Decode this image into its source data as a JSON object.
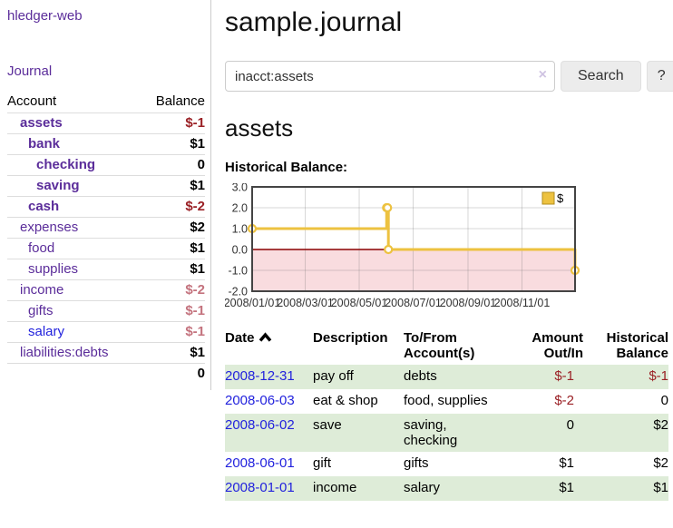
{
  "app": {
    "brand": "hledger-web"
  },
  "nav": {
    "journal": "Journal"
  },
  "sidebar": {
    "header": {
      "account": "Account",
      "balance": "Balance"
    },
    "accounts": [
      {
        "name": "assets",
        "depth": 1,
        "bold": true,
        "link_tone": "purple",
        "balance": "$-1",
        "balance_tone": "negdark"
      },
      {
        "name": "bank",
        "depth": 2,
        "bold": true,
        "link_tone": "purple",
        "balance": "$1",
        "balance_tone": "normal"
      },
      {
        "name": "checking",
        "depth": 3,
        "bold": true,
        "link_tone": "purple",
        "balance": "0",
        "balance_tone": "normal"
      },
      {
        "name": "saving",
        "depth": 3,
        "bold": true,
        "link_tone": "purple",
        "balance": "$1",
        "balance_tone": "normal"
      },
      {
        "name": "cash",
        "depth": 2,
        "bold": true,
        "link_tone": "purple",
        "balance": "$-2",
        "balance_tone": "negdark"
      },
      {
        "name": "expenses",
        "depth": 1,
        "bold": false,
        "link_tone": "purple",
        "balance": "$2",
        "balance_tone": "normal"
      },
      {
        "name": "food",
        "depth": 2,
        "bold": false,
        "link_tone": "purple",
        "balance": "$1",
        "balance_tone": "normal"
      },
      {
        "name": "supplies",
        "depth": 2,
        "bold": false,
        "link_tone": "purple",
        "balance": "$1",
        "balance_tone": "normal"
      },
      {
        "name": "income",
        "depth": 1,
        "bold": false,
        "link_tone": "purple",
        "balance": "$-2",
        "balance_tone": "negsoft"
      },
      {
        "name": "gifts",
        "depth": 2,
        "bold": false,
        "link_tone": "purple",
        "balance": "$-1",
        "balance_tone": "negsoft"
      },
      {
        "name": "salary",
        "depth": 2,
        "bold": false,
        "link_tone": "blue",
        "balance": "$-1",
        "balance_tone": "negsoft"
      },
      {
        "name": "liabilities:debts",
        "depth": 1,
        "bold": false,
        "link_tone": "purple",
        "balance": "$1",
        "balance_tone": "normal"
      }
    ],
    "total": "0"
  },
  "header": {
    "title": "sample.journal"
  },
  "search": {
    "value": "inacct:assets",
    "clear_label": "×",
    "submit_label": "Search",
    "help_label": "?"
  },
  "account_page": {
    "title": "assets",
    "chart_heading": "Historical Balance:"
  },
  "chart_data": {
    "type": "line",
    "step": true,
    "title": "Historical Balance",
    "series": [
      {
        "name": "$",
        "color": "#edc240",
        "points": [
          [
            "2008-01-01",
            1
          ],
          [
            "2008-06-01",
            2
          ],
          [
            "2008-06-02",
            2
          ],
          [
            "2008-06-03",
            0
          ],
          [
            "2008-12-31",
            -1
          ]
        ]
      }
    ],
    "x_range": [
      "2008-01-01",
      "2008-12-31"
    ],
    "ylim": [
      -2,
      3
    ],
    "y_tick_values": [
      3,
      2,
      1,
      0,
      -1,
      -2
    ],
    "y_tick_labels": [
      "3.0",
      "2.0",
      "1.0",
      "0.0",
      "-1.0",
      "-2.0"
    ],
    "x_tick_values": [
      "2008-01-01",
      "2008-03-01",
      "2008-05-01",
      "2008-07-01",
      "2008-09-01",
      "2008-11-01"
    ],
    "x_tick_labels": [
      "2008/01/01",
      "2008/03/01",
      "2008/05/01",
      "2008/07/01",
      "2008/09/01",
      "2008/11/01"
    ],
    "grid": true,
    "legend": {
      "position": "top-right",
      "entries": [
        {
          "label": "$",
          "color": "#edc240"
        }
      ]
    },
    "negative_region_fill": "#f9dcdf",
    "zero_line_color": "#8b0000",
    "border_color": "#444444"
  },
  "register": {
    "columns": {
      "date": "Date",
      "description": "Description",
      "accounts": "To/From Account(s)",
      "amount": "Amount Out/In",
      "balance": "Historical Balance"
    },
    "rows": [
      {
        "date": "2008-12-31",
        "description": "pay off",
        "accounts": "debts",
        "amount": "$-1",
        "amount_tone": "negdark",
        "balance": "$-1",
        "balance_tone": "negdark",
        "shade": true
      },
      {
        "date": "2008-06-03",
        "description": "eat & shop",
        "accounts": "food, supplies",
        "amount": "$-2",
        "amount_tone": "negdark",
        "balance": "0",
        "balance_tone": "normal",
        "shade": false
      },
      {
        "date": "2008-06-02",
        "description": "save",
        "accounts": "saving, checking",
        "amount": "0",
        "amount_tone": "normal",
        "balance": "$2",
        "balance_tone": "normal",
        "shade": true
      },
      {
        "date": "2008-06-01",
        "description": "gift",
        "accounts": "gifts",
        "amount": "$1",
        "amount_tone": "normal",
        "balance": "$2",
        "balance_tone": "normal",
        "shade": false
      },
      {
        "date": "2008-01-01",
        "description": "income",
        "accounts": "salary",
        "amount": "$1",
        "amount_tone": "normal",
        "balance": "$1",
        "balance_tone": "normal",
        "shade": true
      }
    ]
  },
  "colors": {
    "accent_purple": "#5b2d9a",
    "link_blue": "#2222dd",
    "negative_dark": "#9a2025",
    "negative_soft": "#c4737e",
    "row_shade_green": "#deecd8",
    "series_gold": "#edc240"
  }
}
